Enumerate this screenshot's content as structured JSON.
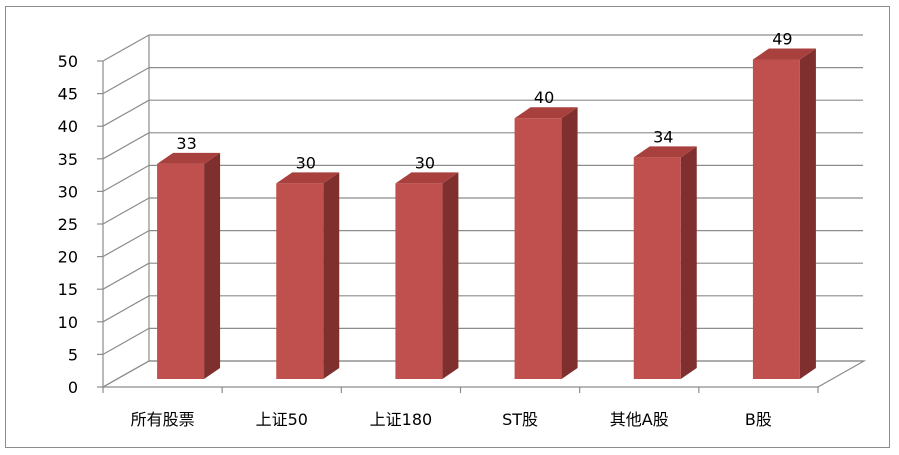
{
  "chart_data": {
    "type": "bar",
    "style": "3d-column",
    "categories": [
      "所有股票",
      "上证50",
      "上证180",
      "ST股",
      "其他A股",
      "B股"
    ],
    "values": [
      33,
      30,
      30,
      40,
      34,
      49
    ],
    "data_labels": [
      "33",
      "30",
      "30",
      "40",
      "34",
      "49"
    ],
    "y_ticks": [
      "0",
      "5",
      "10",
      "15",
      "20",
      "25",
      "30",
      "35",
      "40",
      "45",
      "50"
    ],
    "ylim": [
      0,
      50
    ],
    "grid": true,
    "legend": "none",
    "colors": {
      "bar_front": "#c0504d",
      "bar_side": "#7f302e",
      "bar_top": "#a8403d",
      "grid": "#8c8c8c"
    }
  }
}
